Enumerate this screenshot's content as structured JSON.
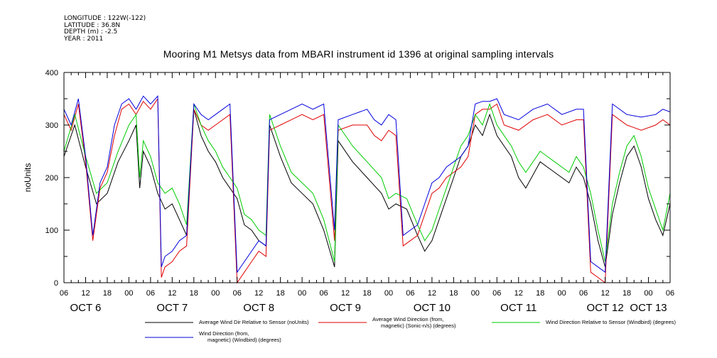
{
  "metadata": {
    "longitude": "LONGITUDE : 122W(-122)",
    "latitude": "LATITUDE : 36.8N",
    "depth": "DEPTH (m) : -2.5",
    "year": "YEAR : 2011"
  },
  "chart_data": {
    "type": "line",
    "title": "Mooring M1 Metsys data from MBARI instrument id 1396 at original sampling intervals",
    "xlabel": "",
    "ylabel": "noUnits",
    "ylim": [
      0,
      400
    ],
    "yticks": [
      "0",
      "100",
      "200",
      "300",
      "400"
    ],
    "xlim_hours_from_oct6_0600": [
      0,
      168
    ],
    "hour_ticks": [
      "06",
      "12",
      "18",
      "00",
      "06",
      "12",
      "18",
      "00",
      "06",
      "12",
      "18",
      "00",
      "06",
      "12",
      "18",
      "00",
      "06",
      "12",
      "18",
      "00",
      "06",
      "12",
      "18",
      "00",
      "06",
      "12",
      "18",
      "00",
      "06"
    ],
    "day_labels": [
      "OCT  6",
      "OCT  7",
      "OCT  8",
      "OCT  9",
      "OCT 10",
      "OCT 11",
      "OCT 12",
      "OCT 13"
    ],
    "grid": false,
    "legend_position": "bottom",
    "series": [
      {
        "name": "Average Wind Dir Relative to Sensor (noUnits)",
        "color": "#000000",
        "points": [
          [
            0,
            240
          ],
          [
            3,
            300
          ],
          [
            6,
            220
          ],
          [
            9,
            150
          ],
          [
            12,
            170
          ],
          [
            15,
            230
          ],
          [
            18,
            270
          ],
          [
            20,
            300
          ],
          [
            21,
            180
          ],
          [
            22,
            250
          ],
          [
            24,
            220
          ],
          [
            26,
            170
          ],
          [
            28,
            140
          ],
          [
            30,
            150
          ],
          [
            32,
            120
          ],
          [
            34,
            90
          ],
          [
            36,
            330
          ],
          [
            38,
            280
          ],
          [
            40,
            250
          ],
          [
            42,
            230
          ],
          [
            44,
            200
          ],
          [
            46,
            180
          ],
          [
            48,
            160
          ],
          [
            50,
            110
          ],
          [
            52,
            100
          ],
          [
            54,
            80
          ],
          [
            56,
            70
          ],
          [
            57,
            300
          ],
          [
            60,
            240
          ],
          [
            63,
            190
          ],
          [
            66,
            170
          ],
          [
            69,
            150
          ],
          [
            72,
            100
          ],
          [
            75,
            30
          ],
          [
            76,
            270
          ],
          [
            80,
            230
          ],
          [
            84,
            200
          ],
          [
            88,
            170
          ],
          [
            90,
            140
          ],
          [
            92,
            150
          ],
          [
            95,
            140
          ],
          [
            98,
            90
          ],
          [
            100,
            60
          ],
          [
            102,
            80
          ],
          [
            104,
            120
          ],
          [
            106,
            160
          ],
          [
            108,
            200
          ],
          [
            110,
            240
          ],
          [
            112,
            260
          ],
          [
            114,
            300
          ],
          [
            116,
            280
          ],
          [
            118,
            320
          ],
          [
            120,
            280
          ],
          [
            122,
            260
          ],
          [
            124,
            240
          ],
          [
            126,
            200
          ],
          [
            128,
            180
          ],
          [
            132,
            230
          ],
          [
            136,
            210
          ],
          [
            140,
            190
          ],
          [
            142,
            220
          ],
          [
            144,
            200
          ],
          [
            146,
            150
          ],
          [
            148,
            80
          ],
          [
            150,
            30
          ],
          [
            152,
            130
          ],
          [
            154,
            190
          ],
          [
            156,
            240
          ],
          [
            158,
            260
          ],
          [
            160,
            220
          ],
          [
            162,
            160
          ],
          [
            164,
            120
          ],
          [
            166,
            90
          ],
          [
            168,
            150
          ]
        ]
      },
      {
        "name": "Average Wind Direction (from, magnetic) (Sonic-n/s) (degrees)",
        "color": "#e00000",
        "points": [
          [
            0,
            320
          ],
          [
            2,
            290
          ],
          [
            4,
            340
          ],
          [
            6,
            230
          ],
          [
            8,
            80
          ],
          [
            10,
            180
          ],
          [
            12,
            210
          ],
          [
            14,
            280
          ],
          [
            16,
            330
          ],
          [
            18,
            340
          ],
          [
            20,
            320
          ],
          [
            22,
            345
          ],
          [
            24,
            330
          ],
          [
            26,
            350
          ],
          [
            27,
            10
          ],
          [
            28,
            30
          ],
          [
            30,
            40
          ],
          [
            32,
            60
          ],
          [
            34,
            70
          ],
          [
            36,
            330
          ],
          [
            38,
            300
          ],
          [
            40,
            290
          ],
          [
            42,
            300
          ],
          [
            44,
            310
          ],
          [
            46,
            320
          ],
          [
            48,
            0
          ],
          [
            50,
            20
          ],
          [
            52,
            40
          ],
          [
            54,
            60
          ],
          [
            56,
            50
          ],
          [
            57,
            290
          ],
          [
            60,
            300
          ],
          [
            63,
            310
          ],
          [
            66,
            320
          ],
          [
            69,
            310
          ],
          [
            72,
            320
          ],
          [
            75,
            80
          ],
          [
            76,
            290
          ],
          [
            80,
            300
          ],
          [
            84,
            300
          ],
          [
            86,
            280
          ],
          [
            88,
            270
          ],
          [
            90,
            290
          ],
          [
            92,
            280
          ],
          [
            94,
            70
          ],
          [
            96,
            80
          ],
          [
            98,
            90
          ],
          [
            100,
            130
          ],
          [
            102,
            170
          ],
          [
            104,
            180
          ],
          [
            106,
            200
          ],
          [
            108,
            210
          ],
          [
            110,
            220
          ],
          [
            112,
            240
          ],
          [
            114,
            320
          ],
          [
            116,
            330
          ],
          [
            118,
            330
          ],
          [
            120,
            340
          ],
          [
            122,
            300
          ],
          [
            126,
            290
          ],
          [
            130,
            310
          ],
          [
            134,
            320
          ],
          [
            138,
            300
          ],
          [
            142,
            310
          ],
          [
            144,
            310
          ],
          [
            146,
            20
          ],
          [
            148,
            10
          ],
          [
            150,
            0
          ],
          [
            152,
            320
          ],
          [
            156,
            300
          ],
          [
            160,
            290
          ],
          [
            164,
            300
          ],
          [
            166,
            310
          ],
          [
            168,
            300
          ]
        ]
      },
      {
        "name": "Wind Direction Relative to Sensor (Windbird) (degrees)",
        "color": "#00cc00",
        "points": [
          [
            0,
            250
          ],
          [
            3,
            320
          ],
          [
            6,
            240
          ],
          [
            9,
            170
          ],
          [
            12,
            190
          ],
          [
            15,
            250
          ],
          [
            18,
            300
          ],
          [
            20,
            320
          ],
          [
            21,
            200
          ],
          [
            22,
            270
          ],
          [
            24,
            240
          ],
          [
            26,
            190
          ],
          [
            28,
            170
          ],
          [
            30,
            180
          ],
          [
            32,
            150
          ],
          [
            34,
            110
          ],
          [
            36,
            340
          ],
          [
            38,
            300
          ],
          [
            40,
            270
          ],
          [
            42,
            250
          ],
          [
            44,
            220
          ],
          [
            46,
            200
          ],
          [
            48,
            180
          ],
          [
            50,
            130
          ],
          [
            52,
            120
          ],
          [
            54,
            100
          ],
          [
            56,
            90
          ],
          [
            57,
            320
          ],
          [
            60,
            260
          ],
          [
            63,
            210
          ],
          [
            66,
            190
          ],
          [
            69,
            170
          ],
          [
            72,
            120
          ],
          [
            75,
            40
          ],
          [
            76,
            300
          ],
          [
            80,
            260
          ],
          [
            84,
            230
          ],
          [
            88,
            200
          ],
          [
            90,
            160
          ],
          [
            92,
            170
          ],
          [
            95,
            160
          ],
          [
            98,
            110
          ],
          [
            100,
            80
          ],
          [
            102,
            100
          ],
          [
            104,
            140
          ],
          [
            106,
            180
          ],
          [
            108,
            220
          ],
          [
            110,
            260
          ],
          [
            112,
            280
          ],
          [
            114,
            320
          ],
          [
            116,
            300
          ],
          [
            118,
            340
          ],
          [
            120,
            300
          ],
          [
            122,
            280
          ],
          [
            124,
            260
          ],
          [
            126,
            230
          ],
          [
            128,
            210
          ],
          [
            132,
            250
          ],
          [
            136,
            230
          ],
          [
            140,
            210
          ],
          [
            142,
            240
          ],
          [
            144,
            220
          ],
          [
            146,
            170
          ],
          [
            148,
            100
          ],
          [
            150,
            40
          ],
          [
            152,
            150
          ],
          [
            154,
            210
          ],
          [
            156,
            260
          ],
          [
            158,
            280
          ],
          [
            160,
            240
          ],
          [
            162,
            180
          ],
          [
            164,
            140
          ],
          [
            166,
            100
          ],
          [
            168,
            170
          ]
        ]
      },
      {
        "name": "Wind Direction (from, magnetic) (Windbird) (degrees)",
        "color": "#0000dd",
        "points": [
          [
            0,
            330
          ],
          [
            2,
            300
          ],
          [
            4,
            350
          ],
          [
            6,
            240
          ],
          [
            8,
            90
          ],
          [
            10,
            190
          ],
          [
            12,
            220
          ],
          [
            14,
            300
          ],
          [
            16,
            340
          ],
          [
            18,
            350
          ],
          [
            20,
            330
          ],
          [
            22,
            355
          ],
          [
            24,
            340
          ],
          [
            26,
            355
          ],
          [
            27,
            30
          ],
          [
            28,
            50
          ],
          [
            30,
            60
          ],
          [
            32,
            80
          ],
          [
            34,
            90
          ],
          [
            36,
            340
          ],
          [
            38,
            320
          ],
          [
            40,
            310
          ],
          [
            42,
            320
          ],
          [
            44,
            330
          ],
          [
            46,
            340
          ],
          [
            48,
            20
          ],
          [
            50,
            40
          ],
          [
            52,
            60
          ],
          [
            54,
            80
          ],
          [
            56,
            70
          ],
          [
            57,
            310
          ],
          [
            60,
            320
          ],
          [
            63,
            330
          ],
          [
            66,
            340
          ],
          [
            69,
            330
          ],
          [
            72,
            340
          ],
          [
            75,
            100
          ],
          [
            76,
            310
          ],
          [
            80,
            320
          ],
          [
            84,
            330
          ],
          [
            86,
            310
          ],
          [
            88,
            300
          ],
          [
            90,
            320
          ],
          [
            92,
            310
          ],
          [
            94,
            90
          ],
          [
            96,
            100
          ],
          [
            98,
            110
          ],
          [
            100,
            150
          ],
          [
            102,
            190
          ],
          [
            104,
            200
          ],
          [
            106,
            220
          ],
          [
            108,
            230
          ],
          [
            110,
            240
          ],
          [
            112,
            260
          ],
          [
            114,
            340
          ],
          [
            116,
            345
          ],
          [
            118,
            345
          ],
          [
            120,
            350
          ],
          [
            122,
            320
          ],
          [
            126,
            310
          ],
          [
            130,
            330
          ],
          [
            134,
            340
          ],
          [
            138,
            320
          ],
          [
            142,
            330
          ],
          [
            144,
            330
          ],
          [
            146,
            40
          ],
          [
            148,
            30
          ],
          [
            150,
            20
          ],
          [
            152,
            340
          ],
          [
            156,
            320
          ],
          [
            160,
            315
          ],
          [
            164,
            320
          ],
          [
            166,
            330
          ],
          [
            168,
            325
          ]
        ]
      }
    ]
  }
}
